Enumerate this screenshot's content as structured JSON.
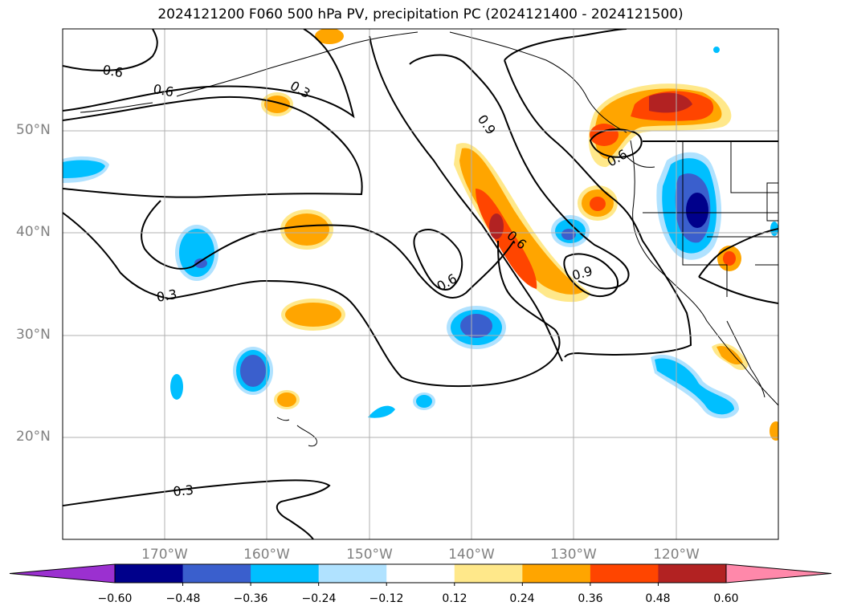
{
  "title": "2024121200 F060 500 hPa PV, precipitation PC (2024121400 - 2024121500)",
  "latitude_labels": [
    "50°N",
    "40°N",
    "30°N",
    "20°N"
  ],
  "longitude_labels": [
    "170°W",
    "160°W",
    "150°W",
    "140°W",
    "130°W",
    "120°W"
  ],
  "contour_labels": [
    "0.6",
    "0.6",
    "0.3",
    "0.9",
    "0.6",
    "0.6",
    "0.9",
    "0.3",
    "0.3",
    "0.6"
  ],
  "colorbar": {
    "ticks": [
      "−0.60",
      "−0.48",
      "−0.36",
      "−0.24",
      "−0.12",
      "0.12",
      "0.24",
      "0.36",
      "0.48",
      "0.60"
    ],
    "colors": [
      "#9b30d0",
      "#00008b",
      "#3a5fcd",
      "#00bfff",
      "#b0e2ff",
      "#ffffff",
      "#ffe88a",
      "#ffa500",
      "#ff4500",
      "#b22222",
      "#ff88aa"
    ]
  },
  "colors": {
    "neg_strong": "#3a5fcd",
    "neg_mid": "#00bfff",
    "neg_weak": "#b0e2ff",
    "pos_weak": "#ffe88a",
    "pos_mid": "#ffa500",
    "pos_strong": "#ff4500",
    "pos_max": "#b22222",
    "grid": "#b0b0b0"
  }
}
